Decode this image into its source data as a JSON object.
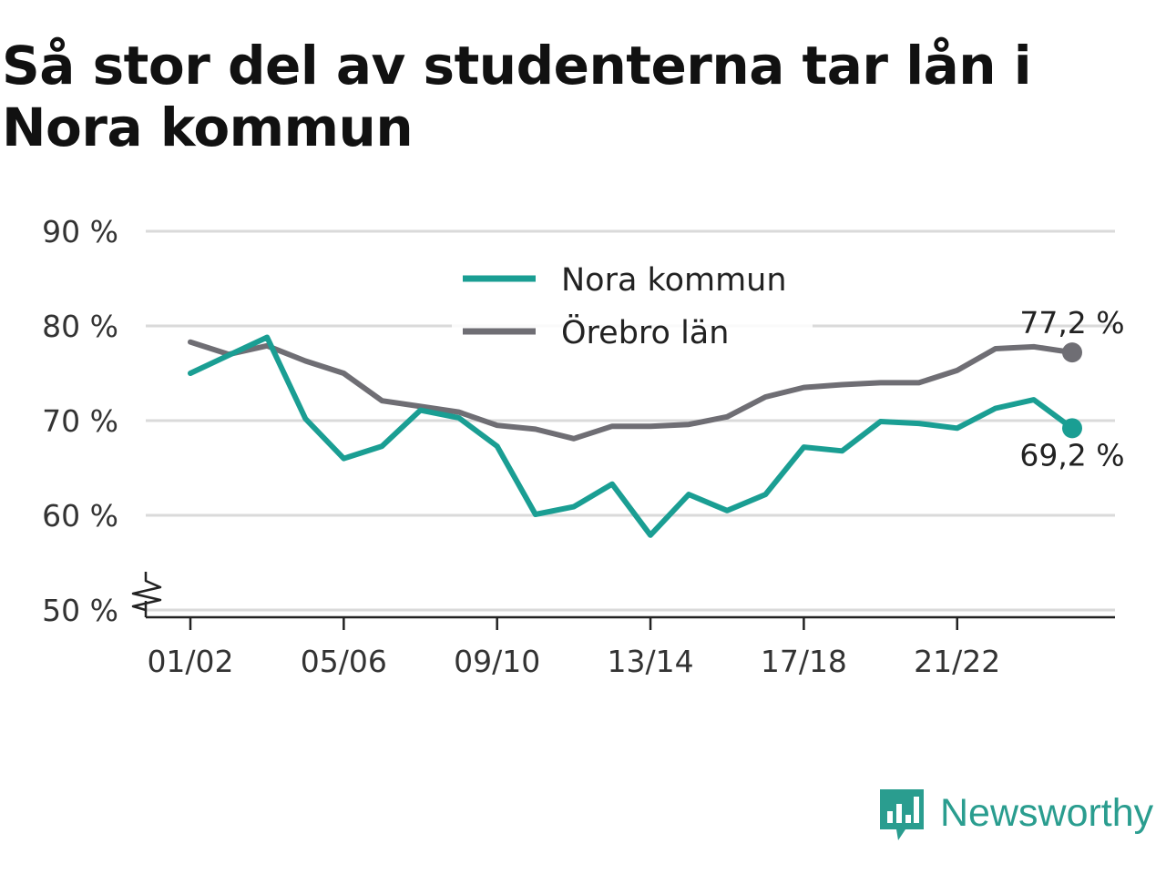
{
  "title": "Så stor del av studenterna tar lån i Nora kommun",
  "brand": {
    "name": "Newsworthy",
    "icon": "newsworthy-logo-icon",
    "color": "#2a9d8f"
  },
  "chart_data": {
    "type": "line",
    "title": "Så stor del av studenterna tar lån i Nora kommun",
    "x": [
      "01/02",
      "02/03",
      "03/04",
      "04/05",
      "05/06",
      "06/07",
      "07/08",
      "08/09",
      "09/10",
      "10/11",
      "11/12",
      "12/13",
      "13/14",
      "14/15",
      "15/16",
      "16/17",
      "17/18",
      "18/19",
      "19/20",
      "20/21",
      "21/22",
      "22/23",
      "23/24",
      "24/25"
    ],
    "x_tick_labels": [
      "01/02",
      "05/06",
      "09/10",
      "13/14",
      "17/18",
      "21/22"
    ],
    "y_ticks": [
      50,
      60,
      70,
      80,
      90
    ],
    "y_tick_labels": [
      "50 %",
      "60 %",
      "70 %",
      "80 %",
      "90 %"
    ],
    "ylim": [
      50,
      90
    ],
    "y_axis_break": true,
    "grid": true,
    "legend_position": "top-center",
    "series": [
      {
        "name": "Nora kommun",
        "color": "#1a9e93",
        "values": [
          75.0,
          76.9,
          78.8,
          70.2,
          66.0,
          67.3,
          71.1,
          70.3,
          67.3,
          60.1,
          60.9,
          63.3,
          57.9,
          62.2,
          60.5,
          62.2,
          67.2,
          66.8,
          69.9,
          69.7,
          69.2,
          71.3,
          72.2,
          69.2
        ],
        "end_label": "69,2 %"
      },
      {
        "name": "Örebro län",
        "color": "#6f6e74",
        "values": [
          78.3,
          77.0,
          77.9,
          76.3,
          75.0,
          72.1,
          71.5,
          70.9,
          69.5,
          69.1,
          68.1,
          69.4,
          69.4,
          69.6,
          70.4,
          72.5,
          73.5,
          73.8,
          74.0,
          74.0,
          75.3,
          77.6,
          77.8,
          77.2
        ],
        "end_label": "77,2 %"
      }
    ]
  }
}
